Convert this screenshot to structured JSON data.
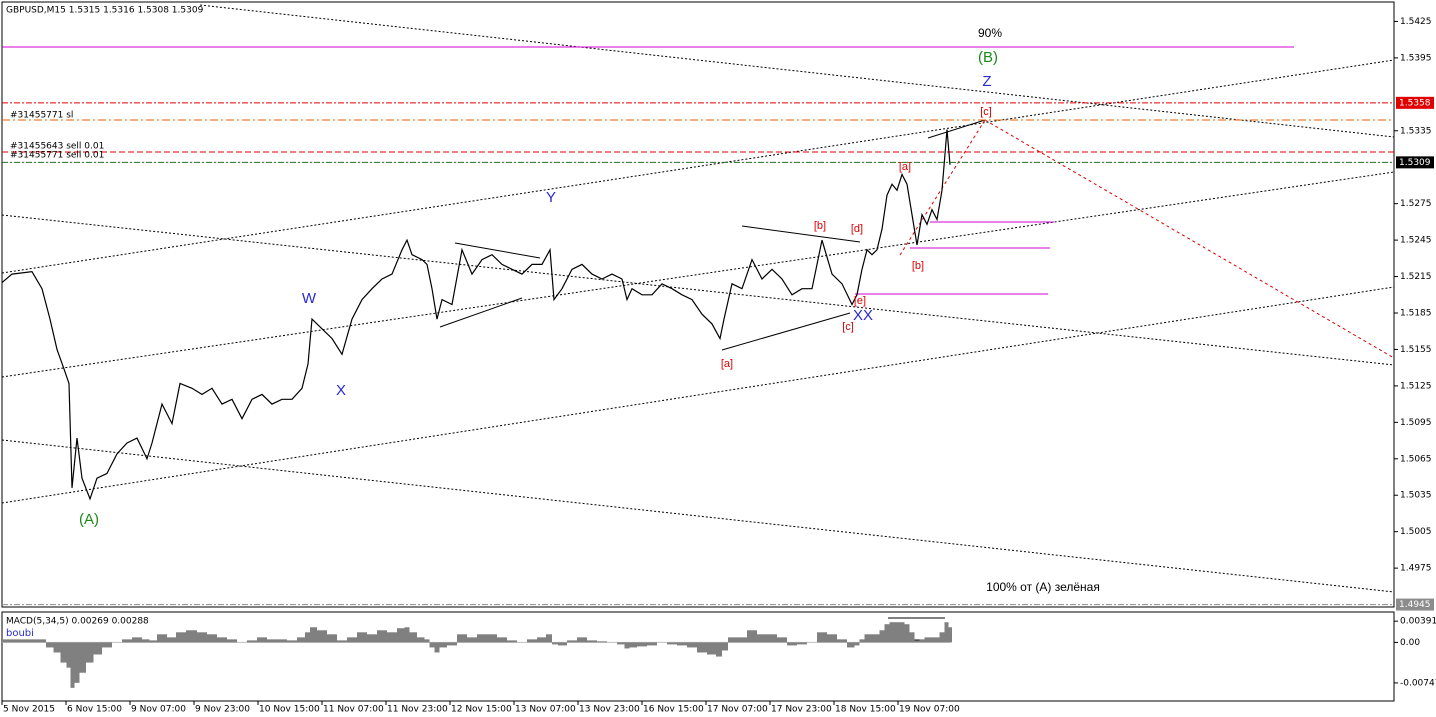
{
  "chart_data": [
    {
      "type": "line",
      "title": "GBPUSD,M15 1.5315 1.5316 1.5308 1.5309",
      "color": "#000000",
      "x": [
        0,
        10,
        30,
        40,
        48,
        55,
        62,
        67,
        70,
        75,
        80,
        88,
        95,
        105,
        115,
        125,
        135,
        145,
        150,
        160,
        170,
        178,
        190,
        200,
        210,
        220,
        230,
        240,
        250,
        260,
        270,
        280,
        290,
        300,
        306,
        310,
        320,
        330,
        340,
        350,
        360,
        370,
        380,
        390,
        400,
        405,
        410,
        420,
        425,
        430,
        435,
        440,
        450,
        460,
        470,
        480,
        490,
        500,
        510,
        520,
        530,
        540,
        548,
        552,
        560,
        570,
        580,
        590,
        600,
        610,
        620,
        625,
        630,
        640,
        650,
        660,
        670,
        680,
        690,
        700,
        710,
        718,
        722,
        730,
        740,
        750,
        760,
        770,
        780,
        790,
        800,
        810,
        820,
        830,
        840,
        850,
        855,
        860,
        865,
        870,
        875,
        880,
        885,
        890,
        895,
        900,
        905,
        910,
        915,
        920,
        925,
        930,
        935,
        940,
        945,
        948
      ],
      "values": [
        1.521,
        1.5217,
        1.5219,
        1.5205,
        1.518,
        1.5155,
        1.5139,
        1.5127,
        1.5041,
        1.5082,
        1.5049,
        1.5032,
        1.5049,
        1.5053,
        1.5069,
        1.5078,
        1.5082,
        1.5065,
        1.5078,
        1.511,
        1.5094,
        1.5127,
        1.5123,
        1.5118,
        1.5123,
        1.511,
        1.5114,
        1.5098,
        1.5114,
        1.5118,
        1.511,
        1.5114,
        1.5114,
        1.5123,
        1.5143,
        1.518,
        1.5172,
        1.5164,
        1.5151,
        1.518,
        1.5196,
        1.5205,
        1.5213,
        1.5217,
        1.5237,
        1.5245,
        1.5233,
        1.5229,
        1.5225,
        1.5205,
        1.518,
        1.5196,
        1.5192,
        1.5237,
        1.5217,
        1.5229,
        1.5233,
        1.5225,
        1.5221,
        1.5217,
        1.5225,
        1.5225,
        1.5237,
        1.5196,
        1.5205,
        1.5221,
        1.5225,
        1.5217,
        1.5213,
        1.5217,
        1.5213,
        1.5196,
        1.5205,
        1.52,
        1.52,
        1.5209,
        1.5205,
        1.52,
        1.5196,
        1.5184,
        1.5176,
        1.5164,
        1.518,
        1.5209,
        1.5205,
        1.5229,
        1.5213,
        1.5221,
        1.5213,
        1.52,
        1.5205,
        1.5205,
        1.5245,
        1.5217,
        1.5209,
        1.5192,
        1.52,
        1.5221,
        1.5237,
        1.5233,
        1.5237,
        1.5254,
        1.5282,
        1.5291,
        1.5286,
        1.5299,
        1.5291,
        1.5266,
        1.5241,
        1.5266,
        1.5258,
        1.527,
        1.5262,
        1.5286,
        1.5336,
        1.5307
      ],
      "xlim": [
        0,
        1392
      ],
      "xticks": [
        {
          "value": 0,
          "label": "5 Nov 2015"
        },
        {
          "value": 64,
          "label": "6 Nov 15:00"
        },
        {
          "value": 128,
          "label": "9 Nov 07:00"
        },
        {
          "value": 192,
          "label": "9 Nov 23:00"
        },
        {
          "value": 256,
          "label": "10 Nov 15:00"
        },
        {
          "value": 320,
          "label": "11 Nov 07:00"
        },
        {
          "value": 384,
          "label": "11 Nov 23:00"
        },
        {
          "value": 448,
          "label": "12 Nov 15:00"
        },
        {
          "value": 512,
          "label": "13 Nov 07:00"
        },
        {
          "value": 576,
          "label": "13 Nov 23:00"
        },
        {
          "value": 640,
          "label": "16 Nov 15:00"
        },
        {
          "value": 704,
          "label": "17 Nov 07:00"
        },
        {
          "value": 768,
          "label": "17 Nov 23:00"
        },
        {
          "value": 832,
          "label": "18 Nov 15:00"
        },
        {
          "value": 896,
          "label": "19 Nov 07:00"
        }
      ],
      "ylim": [
        1.4943,
        1.5441
      ],
      "yticks": [
        1.5425,
        1.5395,
        1.5335,
        1.5275,
        1.5245,
        1.5215,
        1.5185,
        1.5155,
        1.5125,
        1.5095,
        1.5065,
        1.5035,
        1.5005,
        1.4975
      ],
      "price_tags": [
        {
          "value": 1.5358,
          "color": "#e00000"
        },
        {
          "value": 1.5309,
          "color": "#000000"
        },
        {
          "value": 1.4945,
          "color": "#8c8c8c"
        }
      ],
      "order_labels": [
        "#31455771 sl",
        "#31455643 sell 0.01",
        "#31455771 sell 0.01"
      ],
      "annotations": [
        {
          "text": "90%",
          "color": "#000000"
        },
        {
          "text": "(B)",
          "color": "#1a8a1a"
        },
        {
          "text": "Z",
          "color": "#2a2ad0"
        },
        {
          "text": "[c]",
          "color": "#e00000"
        },
        {
          "text": "[a]",
          "color": "#e00000"
        },
        {
          "text": "[d]",
          "color": "#e00000"
        },
        {
          "text": "[b]",
          "color": "#e00000"
        },
        {
          "text": "[b]",
          "color": "#e00000"
        },
        {
          "text": "Y",
          "color": "#2a2ad0"
        },
        {
          "text": "W",
          "color": "#2a2ad0"
        },
        {
          "text": "X",
          "color": "#2a2ad0"
        },
        {
          "text": "[e]",
          "color": "#e00000"
        },
        {
          "text": "XX",
          "color": "#2a2ad0"
        },
        {
          "text": "[c]",
          "color": "#e00000"
        },
        {
          "text": "[a]",
          "color": "#e00000"
        },
        {
          "text": "(A)",
          "color": "#1a8a1a"
        },
        {
          "text": "100% от (A) зелёная",
          "color": "#000000"
        }
      ]
    },
    {
      "type": "bar",
      "title": "MACD(5,34,5) 0.00269 0.00288",
      "subtitle": "boubi",
      "color": "#808080",
      "x": [
        0,
        10,
        30,
        40,
        48,
        55,
        62,
        67,
        70,
        75,
        80,
        88,
        95,
        105,
        115,
        125,
        135,
        145,
        150,
        160,
        170,
        178,
        190,
        200,
        210,
        220,
        230,
        240,
        250,
        260,
        270,
        280,
        290,
        300,
        306,
        310,
        320,
        330,
        340,
        350,
        360,
        370,
        380,
        390,
        400,
        405,
        410,
        420,
        425,
        430,
        435,
        440,
        450,
        460,
        470,
        480,
        490,
        500,
        510,
        520,
        530,
        540,
        548,
        552,
        560,
        570,
        580,
        590,
        600,
        610,
        620,
        625,
        630,
        640,
        650,
        660,
        670,
        680,
        690,
        700,
        710,
        718,
        722,
        730,
        740,
        750,
        760,
        770,
        780,
        790,
        800,
        810,
        820,
        830,
        840,
        850,
        855,
        860,
        865,
        870,
        875,
        880,
        885,
        890,
        895,
        900,
        905,
        910,
        915,
        920,
        925,
        930,
        935,
        940,
        945,
        948
      ],
      "values": [
        0.00056,
        0.00056,
        0.00056,
        0.00056,
        -0.00093,
        -0.00186,
        -0.00372,
        -0.00466,
        -0.00838,
        -0.00745,
        -0.00559,
        -0.00372,
        -0.00223,
        -0.00093,
        0,
        0.00056,
        0.00093,
        0.00056,
        0.00037,
        0.00149,
        0.00093,
        0.00186,
        0.00223,
        0.00186,
        0.00149,
        0.00093,
        0.00056,
        0,
        0.00037,
        0.00093,
        0.00056,
        0.00056,
        0.00037,
        0.00093,
        0.00186,
        0.00279,
        0.00223,
        0.00149,
        0.00037,
        0.00093,
        0.00186,
        0.00149,
        0.00223,
        0.00186,
        0.00261,
        0.00279,
        0.00186,
        0.00093,
        0.00056,
        -0.00093,
        -0.00186,
        -0.00093,
        -0.00056,
        0.00149,
        0.00093,
        0.00149,
        0.00149,
        0.00093,
        0.00037,
        0,
        0.00056,
        0.00093,
        0.00149,
        -0.00037,
        -0.00056,
        0.00037,
        0.00093,
        0.00037,
        0.00019,
        0,
        -0.00037,
        -0.00112,
        -0.00093,
        -0.00074,
        -0.00056,
        0,
        -0.00037,
        -0.00056,
        -0.00093,
        -0.00186,
        -0.00223,
        -0.00261,
        -0.00149,
        0.00093,
        0.00093,
        0.00223,
        0.00149,
        0.00149,
        0.00093,
        -0.00056,
        -0.00037,
        0,
        0.00186,
        0.00149,
        0.00056,
        -0.00093,
        -0.00056,
        0.00056,
        0.00149,
        0.00149,
        0.00149,
        0.00223,
        0.00335,
        0.00372,
        0.00372,
        0.00372,
        0.00335,
        0.00186,
        0.00037,
        0.00056,
        0.00093,
        0.00093,
        0.00093,
        0.00186,
        0.00372,
        0.00279
      ],
      "xlim": [
        0,
        1392
      ],
      "ylim": [
        -0.0108,
        0.0056
      ],
      "yticks": [
        0.00391,
        {
          "value": 0,
          "label": "0.00"
        },
        -0.00747
      ]
    }
  ]
}
